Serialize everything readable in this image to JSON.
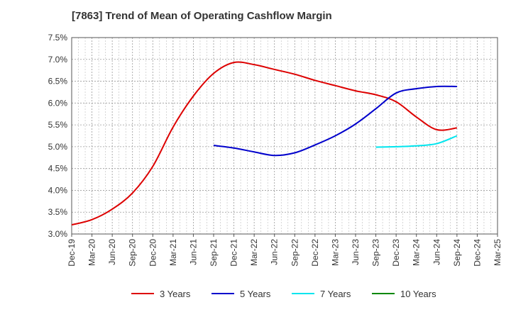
{
  "chart_data": {
    "type": "line",
    "title": "[7863]  Trend of Mean of Operating Cashflow Margin",
    "xlabel": "",
    "ylabel": "",
    "x_categories": [
      "Dec-19",
      "Mar-20",
      "Jun-20",
      "Sep-20",
      "Dec-20",
      "Mar-21",
      "Jun-21",
      "Sep-21",
      "Dec-21",
      "Mar-22",
      "Jun-22",
      "Sep-22",
      "Dec-22",
      "Mar-23",
      "Jun-23",
      "Sep-23",
      "Dec-23",
      "Mar-24",
      "Jun-24",
      "Sep-24",
      "Dec-24",
      "Mar-25"
    ],
    "ylim": [
      3.0,
      7.5
    ],
    "yticks": [
      "3.0%",
      "3.5%",
      "4.0%",
      "4.5%",
      "5.0%",
      "5.5%",
      "6.0%",
      "6.5%",
      "7.0%",
      "7.5%"
    ],
    "grid": true,
    "legend_position": "bottom",
    "series": [
      {
        "name": "3 Years",
        "color": "#dd0000",
        "points": [
          [
            "Dec-19",
            3.21
          ],
          [
            "Mar-20",
            3.33
          ],
          [
            "Jun-20",
            3.57
          ],
          [
            "Sep-20",
            3.94
          ],
          [
            "Dec-20",
            4.55
          ],
          [
            "Mar-21",
            5.45
          ],
          [
            "Jun-21",
            6.16
          ],
          [
            "Sep-21",
            6.68
          ],
          [
            "Dec-21",
            6.93
          ],
          [
            "Mar-22",
            6.88
          ],
          [
            "Jun-22",
            6.77
          ],
          [
            "Sep-22",
            6.66
          ],
          [
            "Dec-22",
            6.52
          ],
          [
            "Mar-23",
            6.4
          ],
          [
            "Jun-23",
            6.28
          ],
          [
            "Sep-23",
            6.19
          ],
          [
            "Dec-23",
            6.03
          ],
          [
            "Mar-24",
            5.68
          ],
          [
            "Jun-24",
            5.39
          ],
          [
            "Sep-24",
            5.43
          ]
        ]
      },
      {
        "name": "5 Years",
        "color": "#0000cc",
        "points": [
          [
            "Sep-21",
            5.03
          ],
          [
            "Dec-21",
            4.97
          ],
          [
            "Mar-22",
            4.88
          ],
          [
            "Jun-22",
            4.8
          ],
          [
            "Sep-22",
            4.86
          ],
          [
            "Dec-22",
            5.04
          ],
          [
            "Mar-23",
            5.25
          ],
          [
            "Jun-23",
            5.52
          ],
          [
            "Sep-23",
            5.87
          ],
          [
            "Dec-23",
            6.23
          ],
          [
            "Mar-24",
            6.33
          ],
          [
            "Jun-24",
            6.38
          ],
          [
            "Sep-24",
            6.38
          ]
        ]
      },
      {
        "name": "7 Years",
        "color": "#00e5ee",
        "points": [
          [
            "Sep-23",
            4.99
          ],
          [
            "Dec-23",
            5.0
          ],
          [
            "Mar-24",
            5.02
          ],
          [
            "Jun-24",
            5.07
          ],
          [
            "Sep-24",
            5.25
          ]
        ]
      },
      {
        "name": "10 Years",
        "color": "#008800",
        "points": []
      }
    ]
  }
}
